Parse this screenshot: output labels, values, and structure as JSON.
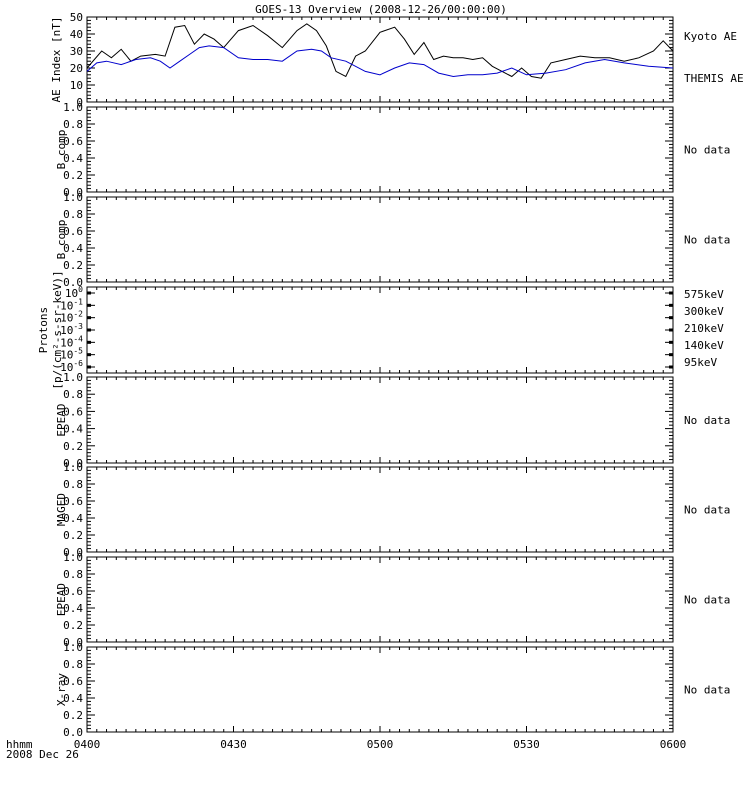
{
  "title": "GOES-13 Overview (2008-12-26/00:00:00)",
  "time_axis": {
    "tick_labels": [
      "0400",
      "0430",
      "0500",
      "0530",
      "0600"
    ],
    "corner_label_1": "hhmm",
    "corner_label_2": "2008 Dec 26"
  },
  "chart_data": [
    {
      "type": "line",
      "panel": "ae",
      "ylabel": "AE Index [nT]",
      "ylim": [
        0,
        50
      ],
      "yticks": [
        "0",
        "10",
        "20",
        "30",
        "40",
        "50"
      ],
      "x_range": [
        "04:00",
        "06:00"
      ],
      "series": [
        {
          "name": "Kyoto AE",
          "color": "#000000",
          "x": [
            "04:00",
            "04:03",
            "04:05",
            "04:07",
            "04:09",
            "04:11",
            "04:14",
            "04:16",
            "04:18",
            "04:20",
            "04:22",
            "04:24",
            "04:26",
            "04:28",
            "04:31",
            "04:34",
            "04:37",
            "04:40",
            "04:43",
            "04:45",
            "04:47",
            "04:49",
            "04:51",
            "04:53",
            "04:55",
            "04:57",
            "05:00",
            "05:03",
            "05:05",
            "05:07",
            "05:09",
            "05:11",
            "05:13",
            "05:15",
            "05:17",
            "05:19",
            "05:21",
            "05:23",
            "05:25",
            "05:27",
            "05:29",
            "05:31",
            "05:33",
            "05:35",
            "05:38",
            "05:41",
            "05:44",
            "05:47",
            "05:50",
            "05:53",
            "05:56",
            "05:58",
            "06:00"
          ],
          "values": [
            20,
            30,
            26,
            31,
            24,
            27,
            28,
            27,
            44,
            45,
            34,
            40,
            37,
            32,
            42,
            45,
            39,
            32,
            42,
            46,
            42,
            33,
            18,
            15,
            27,
            30,
            41,
            44,
            37,
            28,
            35,
            25,
            27,
            26,
            26,
            25,
            26,
            21,
            18,
            15,
            20,
            15,
            14,
            23,
            25,
            27,
            26,
            26,
            24,
            26,
            30,
            36,
            30
          ]
        },
        {
          "name": "THEMIS AE",
          "color": "#0000cc",
          "x": [
            "04:00",
            "04:02",
            "04:04",
            "04:07",
            "04:10",
            "04:13",
            "04:15",
            "04:17",
            "04:19",
            "04:21",
            "04:23",
            "04:25",
            "04:28",
            "04:31",
            "04:34",
            "04:37",
            "04:40",
            "04:43",
            "04:46",
            "04:48",
            "04:50",
            "04:53",
            "04:57",
            "05:00",
            "05:03",
            "05:06",
            "05:09",
            "05:12",
            "05:15",
            "05:18",
            "05:21",
            "05:24",
            "05:27",
            "05:30",
            "05:34",
            "05:38",
            "05:42",
            "05:46",
            "05:50",
            "05:55",
            "06:00"
          ],
          "values": [
            18,
            23,
            24,
            22,
            25,
            26,
            24,
            20,
            24,
            28,
            32,
            33,
            32,
            26,
            25,
            25,
            24,
            30,
            31,
            30,
            26,
            24,
            18,
            16,
            20,
            23,
            22,
            17,
            15,
            16,
            16,
            17,
            20,
            16,
            17,
            19,
            23,
            25,
            23,
            21,
            20
          ]
        }
      ]
    }
  ],
  "linear_panels": [
    {
      "ylabel": "B comp",
      "yticks": [
        "0.0",
        "0.2",
        "0.4",
        "0.6",
        "0.8",
        "1.0"
      ],
      "status": "No data"
    },
    {
      "ylabel": "B comp",
      "yticks": [
        "0.0",
        "0.2",
        "0.4",
        "0.6",
        "0.8",
        "1.0"
      ],
      "status": "No data"
    },
    {
      "ylabel": "EPEAD",
      "yticks": [
        "0.0",
        "0.2",
        "0.4",
        "0.6",
        "0.8",
        "1.0"
      ],
      "status": "No data"
    },
    {
      "ylabel": "MAGED",
      "yticks": [
        "0.0",
        "0.2",
        "0.4",
        "0.6",
        "0.8",
        "1.0"
      ],
      "status": "No data"
    },
    {
      "ylabel": "EPEAD",
      "yticks": [
        "0.0",
        "0.2",
        "0.4",
        "0.6",
        "0.8",
        "1.0"
      ],
      "status": "No data"
    },
    {
      "ylabel": "X-ray",
      "yticks": [
        "0.0",
        "0.2",
        "0.4",
        "0.6",
        "0.8",
        "1.0"
      ],
      "status": "No data"
    }
  ],
  "protons_panel": {
    "ylabel_line1": "Protons",
    "ylabel_line2": "[p/(cm²-s-sr-keV)]",
    "yticks": [
      {
        "base": "10",
        "exp": "-6"
      },
      {
        "base": "10",
        "exp": "-5"
      },
      {
        "base": "10",
        "exp": "-4"
      },
      {
        "base": "10",
        "exp": "-3"
      },
      {
        "base": "10",
        "exp": "-2"
      },
      {
        "base": "10",
        "exp": "-1"
      },
      {
        "base": "10",
        "exp": "0"
      }
    ],
    "legend": [
      {
        "label": "575keV",
        "color": "#8b0000"
      },
      {
        "label": "300keV",
        "color": "#e8a000"
      },
      {
        "label": "210keV",
        "color": "#00c000"
      },
      {
        "label": "140keV",
        "color": "#0000cc"
      },
      {
        "label": "95keV",
        "color": "#000000"
      }
    ]
  }
}
